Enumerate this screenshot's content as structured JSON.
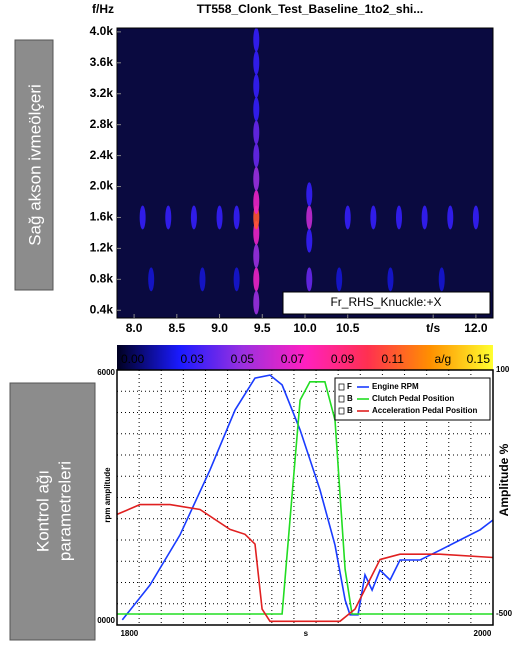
{
  "panels": [
    {
      "label": "Sağ akson ivmeölçeri"
    },
    {
      "label": [
        "Kontrol ağı",
        "parametreleri"
      ]
    }
  ],
  "chart_data": [
    {
      "type": "heatmap",
      "title": "TT558_Clonk_Test_Baseline_1to2_shi...",
      "y_label": "f/Hz",
      "annotation": "Fr_RHS_Knuckle:+X",
      "x": [
        9.43,
        9.43,
        9.43,
        9.43,
        9.43,
        9.43,
        9.43,
        9.43,
        9.43,
        9.43,
        9.43,
        9.43,
        9.43,
        10.05,
        10.05,
        10.05,
        10.05,
        8.1,
        8.4,
        8.7,
        9.0,
        9.2,
        10.5,
        10.8,
        11.1,
        11.4,
        11.7,
        12.0,
        8.2,
        8.8,
        9.2,
        10.4,
        11.0,
        11.6
      ],
      "y": [
        500,
        800,
        1100,
        1400,
        1600,
        1800,
        2100,
        2400,
        2700,
        3000,
        3300,
        3600,
        3900,
        800,
        1300,
        1600,
        1900,
        1600,
        1600,
        1600,
        1600,
        1600,
        1600,
        1600,
        1600,
        1600,
        1600,
        1600,
        800,
        800,
        800,
        800,
        800,
        800
      ],
      "values": [
        0.05,
        0.07,
        0.05,
        0.07,
        0.11,
        0.07,
        0.05,
        0.04,
        0.04,
        0.03,
        0.03,
        0.03,
        0.03,
        0.04,
        0.03,
        0.06,
        0.03,
        0.03,
        0.03,
        0.03,
        0.03,
        0.03,
        0.03,
        0.03,
        0.03,
        0.03,
        0.03,
        0.03,
        0.02,
        0.02,
        0.02,
        0.02,
        0.02,
        0.02
      ],
      "xlim": [
        7.8,
        12.2
      ],
      "xticks": [
        {
          "value": 8,
          "label": "8.0"
        },
        8.5,
        {
          "value": 9,
          "label": "9.0"
        },
        9.5,
        {
          "value": 10,
          "label": "10.0"
        },
        10.5,
        {
          "value": 11.5,
          "label": "t/s"
        },
        {
          "value": 12,
          "label": "12.0"
        }
      ],
      "ylim": [
        300,
        4050
      ],
      "yticks": [
        {
          "value": 400,
          "label": "0.4k"
        },
        {
          "value": 800,
          "label": "0.8k"
        },
        {
          "value": 1200,
          "label": "1.2k"
        },
        {
          "value": 1600,
          "label": "1.6k"
        },
        {
          "value": 2000,
          "label": "2.0k"
        },
        {
          "value": 2400,
          "label": "2.4k"
        },
        {
          "value": 2800,
          "label": "2.8k"
        },
        {
          "value": 3200,
          "label": "3.2k"
        },
        {
          "value": 3600,
          "label": "3.6k"
        },
        {
          "value": 4000,
          "label": "4.0k"
        }
      ],
      "background": "#0a0a40",
      "colormap": [
        "#000020",
        "#1a1aff",
        "#9a30e0",
        "#ff20c0",
        "#ff3050",
        "#ff9000",
        "#ffff30"
      ],
      "clim": [
        0,
        0.15
      ],
      "cticks": [
        {
          "value": 0,
          "label": "0.00"
        },
        0.03,
        0.05,
        0.07,
        0.09,
        0.11,
        {
          "value": 0.13,
          "label": "a/g"
        },
        0.15
      ]
    },
    {
      "type": "line",
      "x_label": "s",
      "y_label": "rpm amplitude",
      "y2_label": "Amplitude %",
      "xlim": [
        1793,
        2006
      ],
      "xticks": [
        1800,
        {
          "value": 1900,
          "label": "s"
        },
        2000
      ],
      "ylim": [
        0,
        6000
      ],
      "yticks": [
        {
          "value": 0,
          "label": "0000"
        },
        6000
      ],
      "y2lim": [
        -527,
        100
      ],
      "y2ticks": [
        -500,
        100
      ],
      "grid": true,
      "legend": "upper right",
      "series": [
        {
          "name": "Engine RPM",
          "tag": "F",
          "color": "#1a3cff",
          "x": [
            1796,
            1811.7,
            1828.7,
            1845.7,
            1859.9,
            1871.2,
            1879.7,
            1886.5,
            1896.7,
            1908,
            1916.5,
            1922.2,
            1925,
            1929.5,
            1933.5,
            1937.5,
            1942,
            1947.7,
            1953.3,
            1964.7,
            1976,
            1987.3,
            1998.7,
            2006
          ],
          "values": [
            120,
            940,
            2120,
            3650,
            5060,
            5810,
            5880,
            5650,
            4590,
            3180,
            1880,
            590,
            240,
            240,
            1180,
            820,
            1290,
            1060,
            1530,
            1530,
            1760,
            2000,
            2240,
            2470
          ]
        },
        {
          "name": "Clutch Pedal Position",
          "tag": "B",
          "color": "#22dd22",
          "axis": "y2",
          "x": [
            1793,
            1886.5,
            1891,
            1896.7,
            1902.3,
            1910.8,
            1916.5,
            1922.2,
            1926.1,
            2006
          ],
          "values": [
            -500,
            -500,
            -268,
            26,
            71,
            71,
            -23,
            -390,
            -500,
            -500
          ]
        },
        {
          "name": "Acceleration Pedal Position",
          "tag": "B",
          "color": "#e02020",
          "axis": "y2",
          "x": [
            1793,
            1806,
            1823,
            1840,
            1857,
            1865.5,
            1871.2,
            1875.2,
            1879.7,
            1919.3,
            1927.8,
            1936.3,
            1942,
            1953.3,
            1976,
            2006
          ],
          "values": [
            -255,
            -231,
            -231,
            -243,
            -292,
            -304,
            -328,
            -488,
            -518,
            -518,
            -488,
            -415,
            -366,
            -353,
            -353,
            -361
          ]
        }
      ]
    }
  ]
}
